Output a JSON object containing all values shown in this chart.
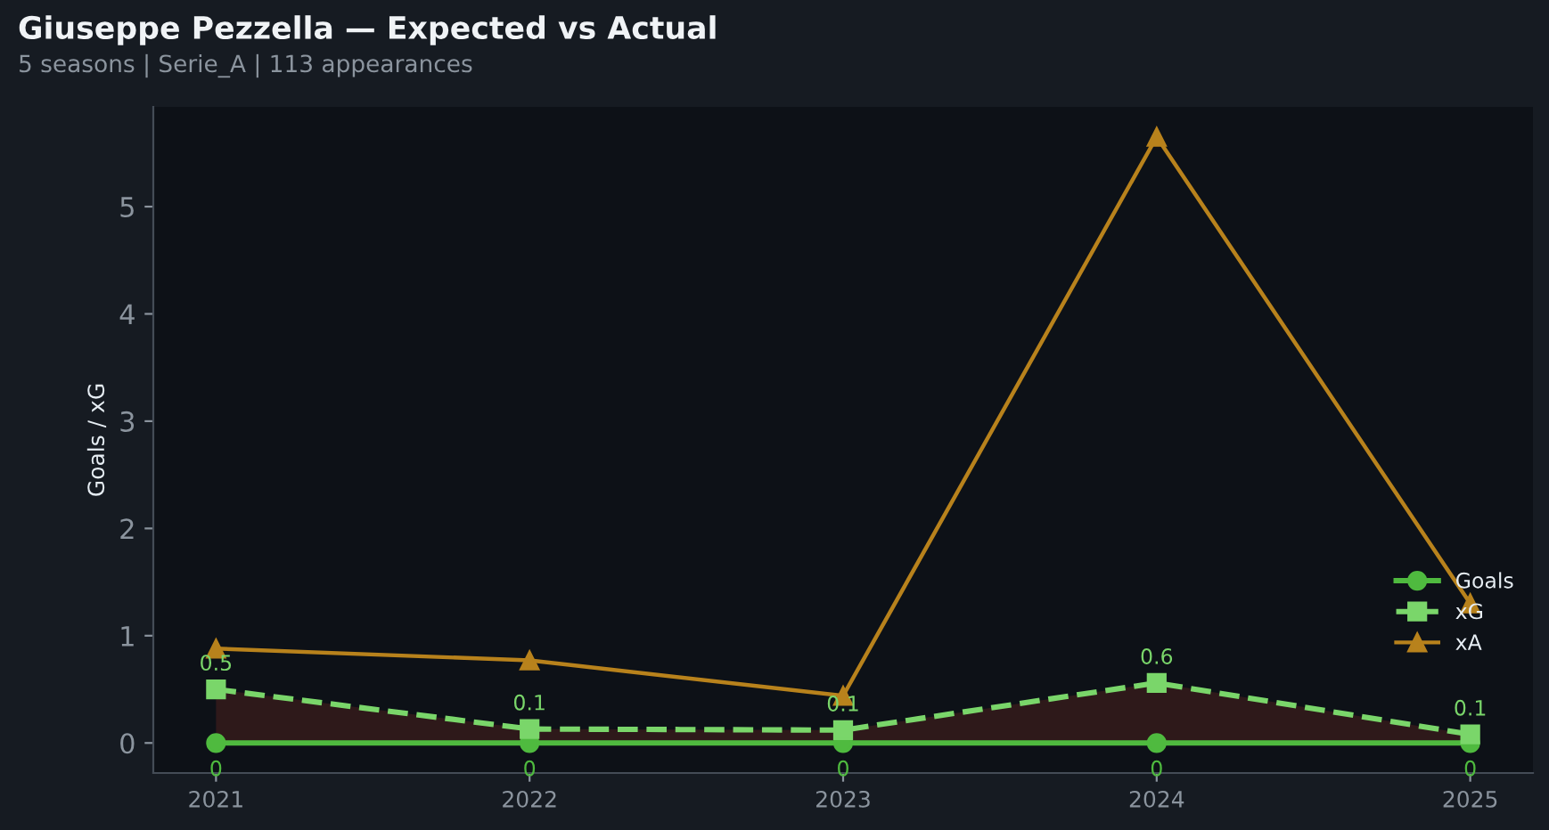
{
  "chart_data": {
    "type": "line",
    "title": "Giuseppe Pezzella — Expected vs Actual",
    "subtitle": "5 seasons | Serie_A | 113 appearances",
    "ylabel": "Goals / xG",
    "x": [
      2021,
      2022,
      2023,
      2024,
      2025
    ],
    "xlim": [
      2020.8,
      2025.2
    ],
    "xticks": [
      2021,
      2022,
      2023,
      2024,
      2025
    ],
    "ylim": [
      -0.28,
      5.93
    ],
    "yticks": [
      0,
      1,
      2,
      3,
      4,
      5
    ],
    "grid": false,
    "legend": "bottom right",
    "series": [
      {
        "name": "Goals",
        "color": "#4fba3f",
        "marker": "circle",
        "line_style": "solid",
        "values": [
          0,
          0,
          0,
          0,
          0
        ],
        "value_labels": [
          "0",
          "0",
          "0",
          "0",
          "0"
        ]
      },
      {
        "name": "xG",
        "color": "#7ad66a",
        "marker": "square",
        "line_style": "dashed",
        "values": [
          0.5,
          0.13,
          0.12,
          0.56,
          0.08
        ],
        "value_labels": [
          "0.5",
          "0.1",
          "0.1",
          "0.6",
          "0.1"
        ],
        "lower": [
          0,
          0,
          0,
          0,
          0
        ],
        "upper": [
          0.5,
          0.13,
          0.12,
          0.56,
          0.08
        ]
      },
      {
        "name": "xA",
        "color": "#b8821c",
        "marker": "triangle",
        "line_style": "solid",
        "values": [
          0.88,
          0.77,
          0.44,
          5.65,
          1.3
        ]
      }
    ]
  }
}
